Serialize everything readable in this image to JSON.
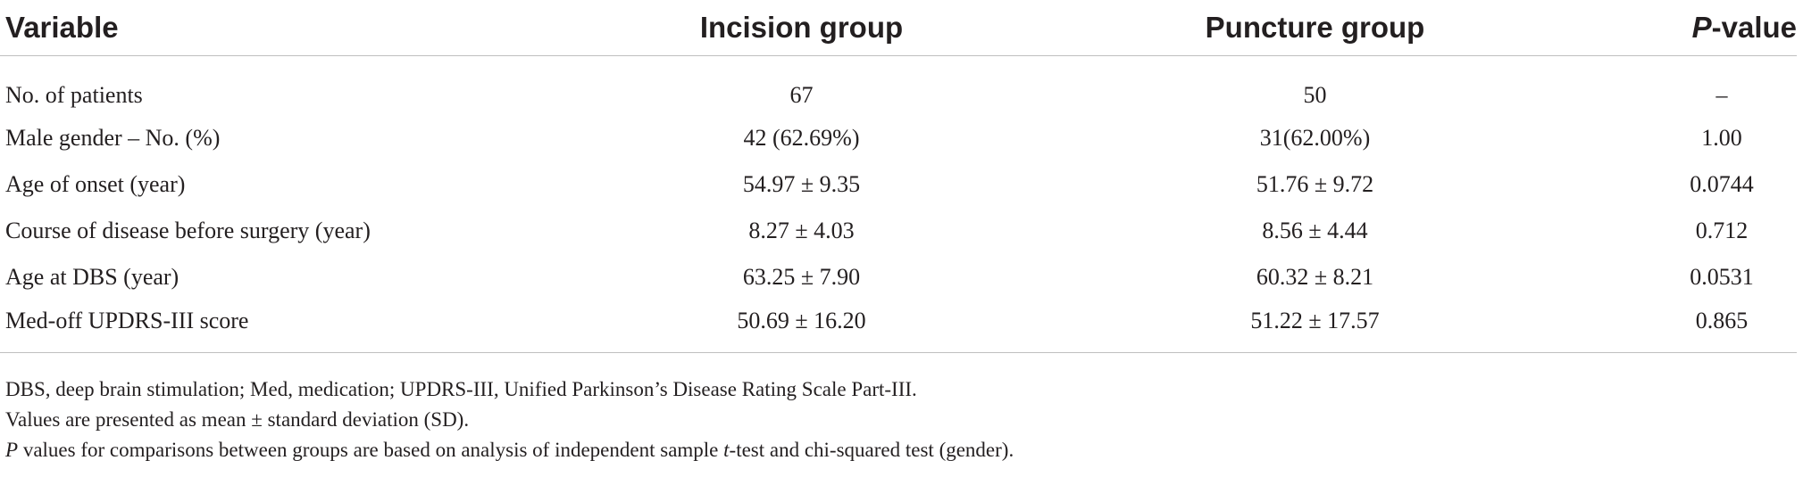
{
  "table": {
    "headers": {
      "variable": "Variable",
      "incision": "Incision group",
      "puncture": "Puncture group",
      "p_italic": "P",
      "p_rest": "-value"
    },
    "rows": [
      {
        "variable": "No. of patients",
        "incision": "67",
        "puncture": "50",
        "p": "–"
      },
      {
        "variable": "Male gender – No. (%)",
        "incision": "42 (62.69%)",
        "puncture": "31(62.00%)",
        "p": "1.00"
      },
      {
        "variable": "Age of onset (year)",
        "incision": "54.97 ± 9.35",
        "puncture": "51.76 ± 9.72",
        "p": "0.0744"
      },
      {
        "variable": "Course of disease before surgery (year)",
        "incision": "8.27 ± 4.03",
        "puncture": "8.56 ± 4.44",
        "p": "0.712"
      },
      {
        "variable": "Age at DBS (year)",
        "incision": "63.25 ± 7.90",
        "puncture": "60.32 ± 8.21",
        "p": "0.0531"
      },
      {
        "variable": "Med-off UPDRS-III score",
        "incision": "50.69 ± 16.20",
        "puncture": "51.22 ± 17.57",
        "p": "0.865"
      }
    ]
  },
  "notes": {
    "abbrev": "DBS, deep brain stimulation; Med, medication; UPDRS-III, Unified Parkinson’s Disease Rating Scale Part-III.",
    "values": "Values are presented as mean ± standard deviation (SD).",
    "p_italic": "P",
    "p_part1": " values for comparisons between groups are based on analysis of independent sample ",
    "p_t": "t",
    "p_part2": "-test and chi-squared test (gender)."
  }
}
